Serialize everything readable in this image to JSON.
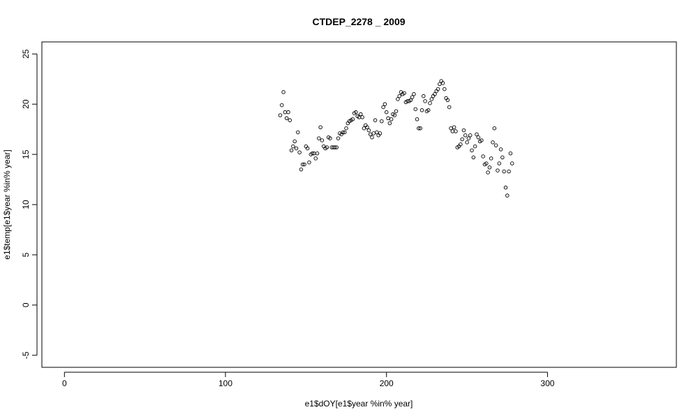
{
  "chart_data": {
    "type": "scatter",
    "title": "CTDEP_2278 _ 2009",
    "xlabel": "e1$dOY[e1$year %in% year]",
    "ylabel": "e1$temp[e1$year %in% year]",
    "xlim": [
      -14,
      380
    ],
    "ylim": [
      -6.2,
      26.2
    ],
    "xticks": [
      0,
      100,
      200,
      300
    ],
    "yticks": [
      -5,
      0,
      5,
      10,
      15,
      20,
      25
    ],
    "xtick_labels": [
      "0",
      "100",
      "200",
      "300"
    ],
    "ytick_labels": [
      "-5",
      "0",
      "5",
      "10",
      "15",
      "20",
      "25"
    ],
    "grid": false,
    "marker": "open-circle",
    "color": "#000000",
    "points": [
      [
        134,
        18.9
      ],
      [
        135,
        19.9
      ],
      [
        136,
        21.2
      ],
      [
        137,
        19.2
      ],
      [
        138,
        18.6
      ],
      [
        139,
        19.2
      ],
      [
        140,
        18.4
      ],
      [
        141,
        15.4
      ],
      [
        142,
        15.8
      ],
      [
        143,
        16.3
      ],
      [
        144,
        15.6
      ],
      [
        145,
        17.2
      ],
      [
        146,
        15.2
      ],
      [
        147,
        13.5
      ],
      [
        148,
        14.0
      ],
      [
        149,
        14.0
      ],
      [
        150,
        15.8
      ],
      [
        151,
        15.6
      ],
      [
        152,
        14.2
      ],
      [
        153,
        15.0
      ],
      [
        154,
        15.1
      ],
      [
        155,
        15.1
      ],
      [
        156,
        14.6
      ],
      [
        157,
        15.1
      ],
      [
        158,
        16.6
      ],
      [
        159,
        17.7
      ],
      [
        160,
        16.4
      ],
      [
        161,
        15.8
      ],
      [
        162,
        15.6
      ],
      [
        163,
        15.7
      ],
      [
        164,
        16.7
      ],
      [
        165,
        16.6
      ],
      [
        166,
        15.7
      ],
      [
        167,
        15.7
      ],
      [
        168,
        15.7
      ],
      [
        169,
        15.7
      ],
      [
        170,
        16.6
      ],
      [
        171,
        17.1
      ],
      [
        172,
        17.0
      ],
      [
        173,
        17.2
      ],
      [
        174,
        17.2
      ],
      [
        175,
        17.6
      ],
      [
        176,
        18.1
      ],
      [
        177,
        18.3
      ],
      [
        178,
        18.4
      ],
      [
        179,
        18.5
      ],
      [
        180,
        19.1
      ],
      [
        181,
        19.2
      ],
      [
        182,
        18.8
      ],
      [
        183,
        18.7
      ],
      [
        184,
        19.0
      ],
      [
        185,
        18.7
      ],
      [
        186,
        17.6
      ],
      [
        187,
        17.9
      ],
      [
        188,
        17.7
      ],
      [
        189,
        17.4
      ],
      [
        190,
        17.0
      ],
      [
        191,
        16.7
      ],
      [
        192,
        17.1
      ],
      [
        193,
        18.4
      ],
      [
        194,
        17.2
      ],
      [
        195,
        16.9
      ],
      [
        196,
        17.1
      ],
      [
        197,
        18.3
      ],
      [
        198,
        19.7
      ],
      [
        199,
        20.0
      ],
      [
        200,
        19.2
      ],
      [
        201,
        18.6
      ],
      [
        202,
        18.1
      ],
      [
        203,
        18.5
      ],
      [
        204,
        19.0
      ],
      [
        205,
        18.9
      ],
      [
        206,
        19.3
      ],
      [
        207,
        20.5
      ],
      [
        208,
        20.8
      ],
      [
        209,
        21.2
      ],
      [
        210,
        21.0
      ],
      [
        211,
        21.1
      ],
      [
        212,
        20.2
      ],
      [
        213,
        20.3
      ],
      [
        214,
        20.3
      ],
      [
        215,
        20.4
      ],
      [
        216,
        20.7
      ],
      [
        217,
        21.0
      ],
      [
        218,
        19.5
      ],
      [
        219,
        18.5
      ],
      [
        220,
        17.6
      ],
      [
        221,
        17.6
      ],
      [
        222,
        19.4
      ],
      [
        223,
        20.8
      ],
      [
        224,
        20.3
      ],
      [
        225,
        19.3
      ],
      [
        226,
        19.4
      ],
      [
        227,
        20.1
      ],
      [
        228,
        20.5
      ],
      [
        229,
        20.8
      ],
      [
        230,
        21.0
      ],
      [
        231,
        21.3
      ],
      [
        232,
        21.5
      ],
      [
        233,
        22.0
      ],
      [
        234,
        22.3
      ],
      [
        235,
        22.1
      ],
      [
        236,
        21.5
      ],
      [
        237,
        20.6
      ],
      [
        238,
        20.4
      ],
      [
        239,
        19.7
      ],
      [
        240,
        17.6
      ],
      [
        241,
        17.3
      ],
      [
        242,
        17.7
      ],
      [
        243,
        17.3
      ],
      [
        244,
        15.7
      ],
      [
        245,
        15.8
      ],
      [
        246,
        16.0
      ],
      [
        247,
        16.5
      ],
      [
        248,
        17.4
      ],
      [
        249,
        16.9
      ],
      [
        250,
        16.2
      ],
      [
        251,
        16.6
      ],
      [
        252,
        16.9
      ],
      [
        253,
        15.4
      ],
      [
        254,
        14.7
      ],
      [
        255,
        15.8
      ],
      [
        256,
        17.0
      ],
      [
        257,
        16.7
      ],
      [
        258,
        16.3
      ],
      [
        259,
        16.4
      ],
      [
        260,
        14.8
      ],
      [
        261,
        14.0
      ],
      [
        262,
        14.1
      ],
      [
        263,
        13.2
      ],
      [
        264,
        13.7
      ],
      [
        265,
        14.6
      ],
      [
        266,
        16.2
      ],
      [
        267,
        17.6
      ],
      [
        268,
        15.9
      ],
      [
        269,
        13.4
      ],
      [
        270,
        14.1
      ],
      [
        271,
        15.5
      ],
      [
        272,
        14.7
      ],
      [
        273,
        13.3
      ],
      [
        274,
        11.7
      ],
      [
        275,
        10.9
      ],
      [
        276,
        13.3
      ],
      [
        277,
        15.1
      ],
      [
        278,
        14.1
      ]
    ]
  }
}
